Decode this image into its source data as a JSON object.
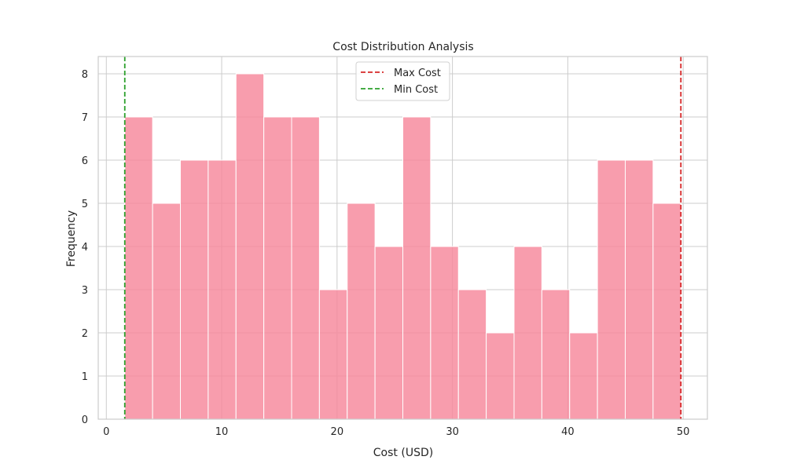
{
  "chart_data": {
    "type": "bar",
    "title": "Cost Distribution Analysis",
    "xlabel": "Cost (USD)",
    "ylabel": "Frequency",
    "xlim": [
      -0.7,
      52.1
    ],
    "ylim": [
      0,
      8.4
    ],
    "xticks": [
      0,
      10,
      20,
      30,
      40,
      50
    ],
    "yticks": [
      0,
      1,
      2,
      3,
      4,
      5,
      6,
      7,
      8
    ],
    "grid": true,
    "bins": [
      {
        "x0": 1.6,
        "x1": 4.01,
        "count": 7
      },
      {
        "x0": 4.01,
        "x1": 6.42,
        "count": 5
      },
      {
        "x0": 6.42,
        "x1": 8.83,
        "count": 6
      },
      {
        "x0": 8.83,
        "x1": 11.24,
        "count": 6
      },
      {
        "x0": 11.24,
        "x1": 13.65,
        "count": 8
      },
      {
        "x0": 13.65,
        "x1": 16.06,
        "count": 7
      },
      {
        "x0": 16.06,
        "x1": 18.47,
        "count": 7
      },
      {
        "x0": 18.47,
        "x1": 20.88,
        "count": 3
      },
      {
        "x0": 20.88,
        "x1": 23.29,
        "count": 5
      },
      {
        "x0": 23.29,
        "x1": 25.7,
        "count": 4
      },
      {
        "x0": 25.7,
        "x1": 28.11,
        "count": 7
      },
      {
        "x0": 28.11,
        "x1": 30.52,
        "count": 4
      },
      {
        "x0": 30.52,
        "x1": 32.93,
        "count": 3
      },
      {
        "x0": 32.93,
        "x1": 35.34,
        "count": 2
      },
      {
        "x0": 35.34,
        "x1": 37.75,
        "count": 4
      },
      {
        "x0": 37.75,
        "x1": 40.16,
        "count": 3
      },
      {
        "x0": 40.16,
        "x1": 42.57,
        "count": 2
      },
      {
        "x0": 42.57,
        "x1": 44.98,
        "count": 6
      },
      {
        "x0": 44.98,
        "x1": 47.39,
        "count": 6
      },
      {
        "x0": 47.39,
        "x1": 49.8,
        "count": 5
      }
    ],
    "reference_lines": [
      {
        "name": "Max Cost",
        "x": 49.8,
        "color": "#d62728",
        "style": "dashed"
      },
      {
        "name": "Min Cost",
        "x": 1.6,
        "color": "#2ca02c",
        "style": "dashed"
      }
    ],
    "legend_position": "top-center",
    "bar_color": "#f7879b"
  }
}
